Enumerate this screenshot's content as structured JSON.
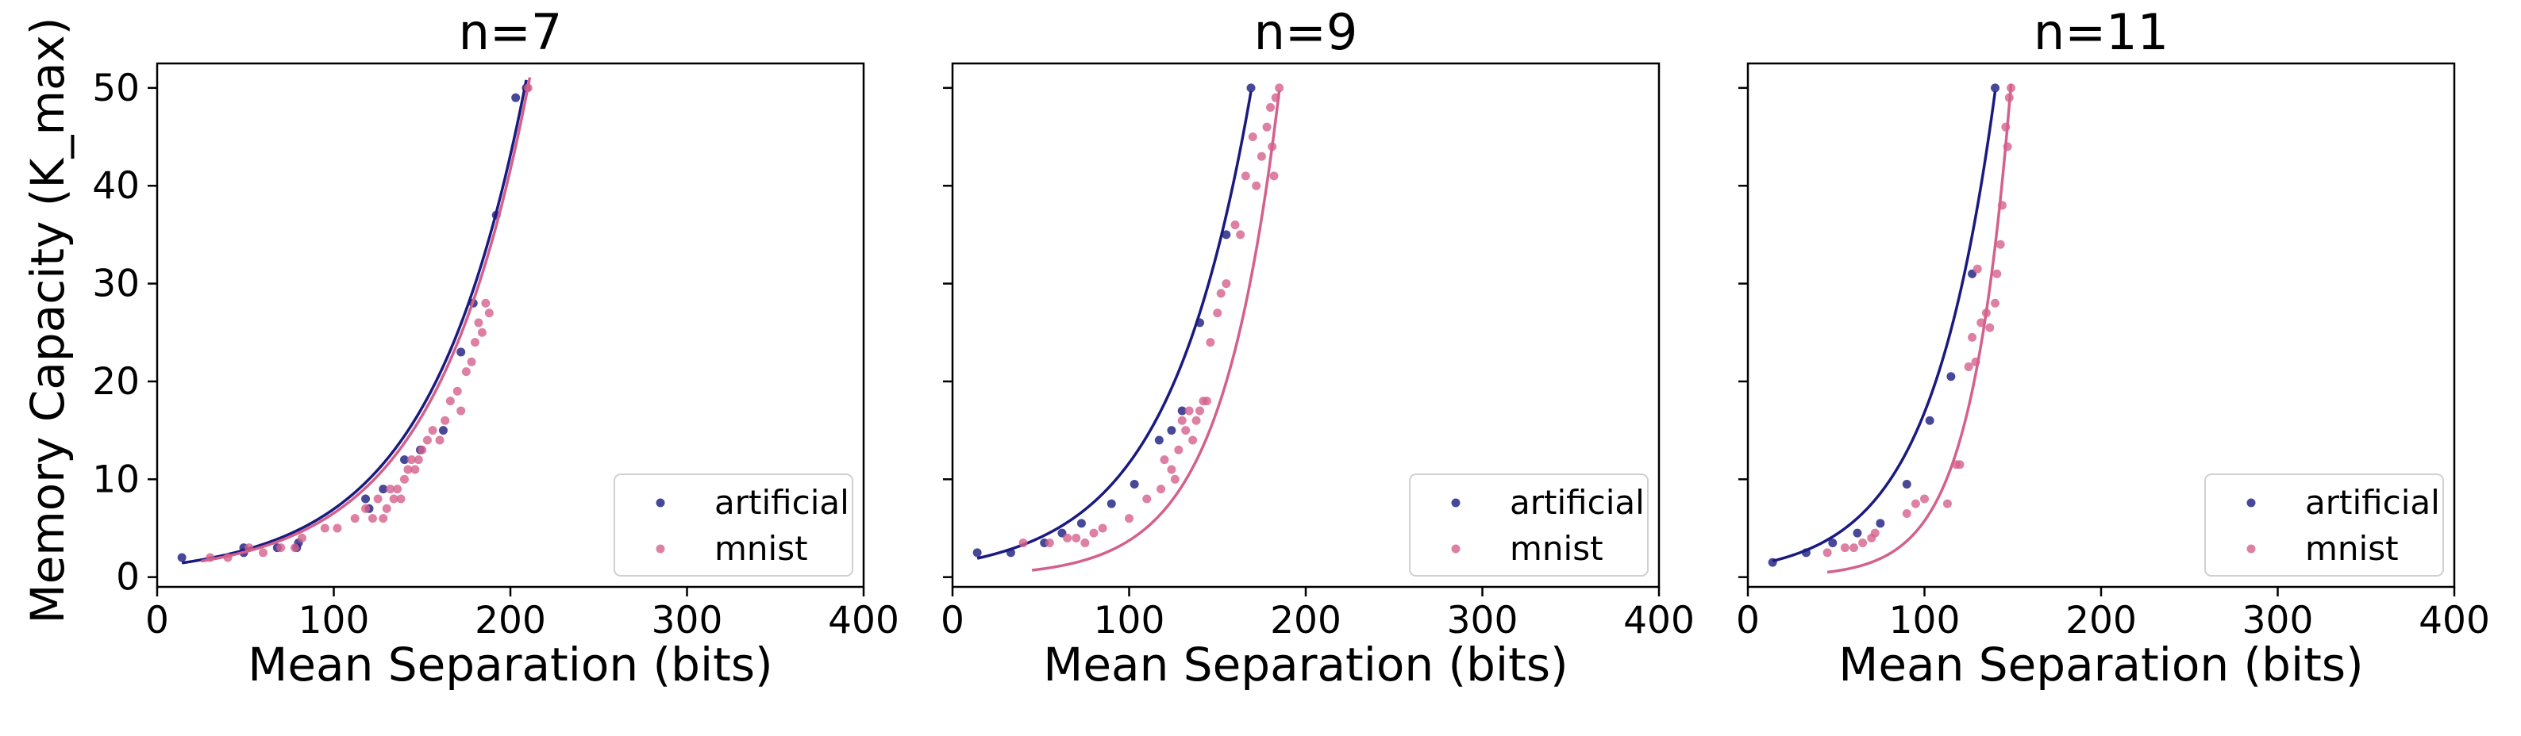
{
  "figure": {
    "shared_ylabel": "Memory Capacity (K_max)"
  },
  "chart_data": [
    {
      "type": "scatter",
      "title": "n=7",
      "xlabel": "Mean Separation (bits)",
      "ylabel": "Memory Capacity (K_max)",
      "xlim": [
        0,
        400
      ],
      "ylim": [
        -1,
        52.5
      ],
      "xticks": [
        0,
        100,
        200,
        300,
        400
      ],
      "yticks": [
        0,
        10,
        20,
        30,
        40,
        50
      ],
      "legend": {
        "location": "lower-right",
        "entries": [
          "artificial",
          "mnist"
        ]
      },
      "series": [
        {
          "name": "artificial",
          "color": "#1a1a80",
          "points": [
            [
              14,
              2
            ],
            [
              49,
              3
            ],
            [
              49,
              2.5
            ],
            [
              68,
              3
            ],
            [
              79,
              3
            ],
            [
              80,
              3.5
            ],
            [
              118,
              8
            ],
            [
              120,
              7
            ],
            [
              128,
              9
            ],
            [
              140,
              12
            ],
            [
              149,
              13
            ],
            [
              162,
              15
            ],
            [
              172,
              23
            ],
            [
              179,
              28
            ],
            [
              192,
              37
            ],
            [
              203,
              49
            ],
            [
              209,
              50
            ]
          ],
          "fit": {
            "a": 1.123,
            "b": 0.01824,
            "x_range": [
              14,
              209
            ]
          }
        },
        {
          "name": "mnist",
          "color": "#d4608c",
          "points": [
            [
              30,
              2
            ],
            [
              40,
              2
            ],
            [
              52,
              3
            ],
            [
              60,
              2.5
            ],
            [
              70,
              3
            ],
            [
              78,
              3
            ],
            [
              82,
              4
            ],
            [
              95,
              5
            ],
            [
              102,
              5
            ],
            [
              112,
              6
            ],
            [
              118,
              7
            ],
            [
              122,
              6
            ],
            [
              125,
              8
            ],
            [
              128,
              6
            ],
            [
              130,
              7
            ],
            [
              132,
              9
            ],
            [
              134,
              8
            ],
            [
              136,
              9
            ],
            [
              138,
              8
            ],
            [
              140,
              10
            ],
            [
              142,
              11
            ],
            [
              144,
              12
            ],
            [
              146,
              11
            ],
            [
              148,
              12
            ],
            [
              150,
              13
            ],
            [
              153,
              14
            ],
            [
              156,
              15
            ],
            [
              160,
              14
            ],
            [
              163,
              16
            ],
            [
              166,
              18
            ],
            [
              170,
              19
            ],
            [
              172,
              17
            ],
            [
              175,
              21
            ],
            [
              178,
              22
            ],
            [
              180,
              24
            ],
            [
              182,
              26
            ],
            [
              184,
              25
            ],
            [
              186,
              28
            ],
            [
              188,
              27
            ],
            [
              210,
              50
            ]
          ],
          "fit": {
            "a": 1.026,
            "b": 0.01852,
            "x_range": [
              25,
              211
            ]
          }
        }
      ]
    },
    {
      "type": "scatter",
      "title": "n=9",
      "xlabel": "Mean Separation (bits)",
      "ylabel": "",
      "xlim": [
        0,
        400
      ],
      "ylim": [
        -1,
        52.5
      ],
      "xticks": [
        0,
        100,
        200,
        300,
        400
      ],
      "yticks": [
        0,
        10,
        20,
        30,
        40,
        50
      ],
      "legend": {
        "location": "lower-right",
        "entries": [
          "artificial",
          "mnist"
        ]
      },
      "series": [
        {
          "name": "artificial",
          "color": "#1a1a80",
          "points": [
            [
              14,
              2.5
            ],
            [
              33,
              2.5
            ],
            [
              52,
              3.5
            ],
            [
              62,
              4.5
            ],
            [
              73,
              5.5
            ],
            [
              90,
              7.5
            ],
            [
              103,
              9.5
            ],
            [
              117,
              14
            ],
            [
              124,
              15
            ],
            [
              130,
              17
            ],
            [
              140,
              26
            ],
            [
              155,
              35
            ],
            [
              169,
              50
            ]
          ],
          "fit": {
            "a": 1.43,
            "b": 0.02099,
            "x_range": [
              14,
              169
            ]
          }
        },
        {
          "name": "mnist",
          "color": "#d4608c",
          "points": [
            [
              40,
              3.5
            ],
            [
              55,
              3.5
            ],
            [
              65,
              4
            ],
            [
              70,
              4
            ],
            [
              75,
              3.5
            ],
            [
              80,
              4.5
            ],
            [
              85,
              5
            ],
            [
              100,
              6
            ],
            [
              110,
              8
            ],
            [
              118,
              9
            ],
            [
              120,
              12
            ],
            [
              124,
              11
            ],
            [
              126,
              10
            ],
            [
              128,
              13
            ],
            [
              130,
              16
            ],
            [
              132,
              15
            ],
            [
              134,
              17
            ],
            [
              136,
              14
            ],
            [
              138,
              16
            ],
            [
              140,
              17
            ],
            [
              142,
              18
            ],
            [
              144,
              18
            ],
            [
              146,
              24
            ],
            [
              150,
              27
            ],
            [
              152,
              29
            ],
            [
              155,
              30
            ],
            [
              160,
              36
            ],
            [
              163,
              35
            ],
            [
              166,
              41
            ],
            [
              170,
              45
            ],
            [
              172,
              40
            ],
            [
              175,
              43
            ],
            [
              178,
              46
            ],
            [
              180,
              48
            ],
            [
              181,
              44
            ],
            [
              182,
              41
            ],
            [
              183,
              49
            ],
            [
              185,
              50
            ]
          ],
          "fit": {
            "a": 0.1785,
            "b": 0.03043,
            "x_range": [
              45,
              185
            ]
          }
        }
      ]
    },
    {
      "type": "scatter",
      "title": "n=11",
      "xlabel": "Mean Separation (bits)",
      "ylabel": "",
      "xlim": [
        0,
        400
      ],
      "ylim": [
        -1,
        52.5
      ],
      "xticks": [
        0,
        100,
        200,
        300,
        400
      ],
      "yticks": [
        0,
        10,
        20,
        30,
        40,
        50
      ],
      "legend": {
        "location": "lower-right",
        "entries": [
          "artificial",
          "mnist"
        ]
      },
      "series": [
        {
          "name": "artificial",
          "color": "#1a1a80",
          "points": [
            [
              14,
              1.5
            ],
            [
              33,
              2.5
            ],
            [
              48,
              3.5
            ],
            [
              62,
              4.5
            ],
            [
              75,
              5.5
            ],
            [
              90,
              9.5
            ],
            [
              103,
              16
            ],
            [
              115,
              20.5
            ],
            [
              127,
              31
            ],
            [
              140,
              50
            ]
          ],
          "fit": {
            "a": 1.127,
            "b": 0.02704,
            "x_range": [
              14,
              140
            ]
          }
        },
        {
          "name": "mnist",
          "color": "#d4608c",
          "points": [
            [
              45,
              2.5
            ],
            [
              55,
              3
            ],
            [
              60,
              3
            ],
            [
              65,
              3.5
            ],
            [
              70,
              4
            ],
            [
              72,
              4.5
            ],
            [
              90,
              6.5
            ],
            [
              95,
              7.5
            ],
            [
              100,
              8
            ],
            [
              113,
              7.5
            ],
            [
              118,
              11.5
            ],
            [
              120,
              11.5
            ],
            [
              125,
              21.5
            ],
            [
              127,
              24.5
            ],
            [
              129,
              22
            ],
            [
              130,
              31.5
            ],
            [
              132,
              26
            ],
            [
              135,
              27
            ],
            [
              137,
              25.5
            ],
            [
              140,
              28
            ],
            [
              141,
              31
            ],
            [
              143,
              34
            ],
            [
              144,
              38
            ],
            [
              146,
              46
            ],
            [
              147,
              44
            ],
            [
              148,
              49
            ],
            [
              149,
              50
            ]
          ],
          "fit": {
            "a": 0.06826,
            "b": 0.04433,
            "x_range": [
              45,
              149
            ]
          }
        }
      ]
    }
  ]
}
